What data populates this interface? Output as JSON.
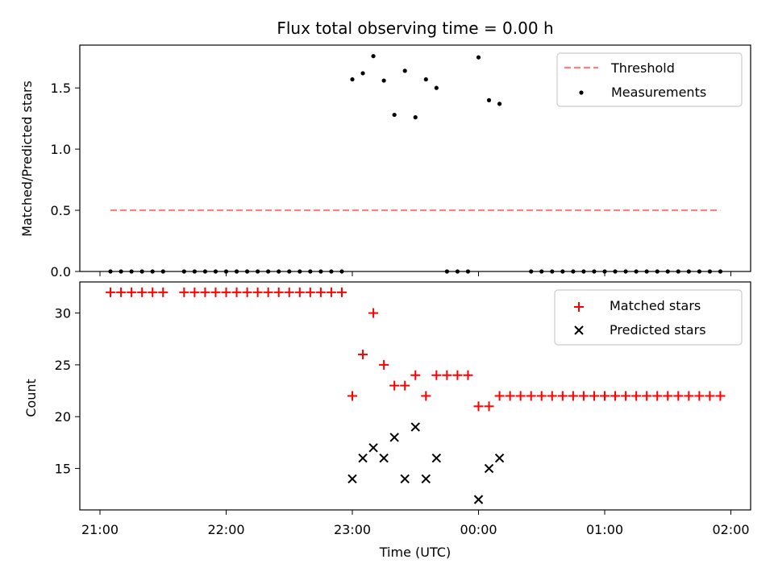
{
  "chart_data": [
    {
      "type": "scatter",
      "title": "Flux total observing time = 0.00 h",
      "xlabel": "",
      "ylabel": "Matched/Predicted stars",
      "ylim": [
        0,
        1.85
      ],
      "yticks": [
        "0.0",
        "0.5",
        "1.0",
        "1.5"
      ],
      "ytick_values": [
        0,
        0.5,
        1.0,
        1.5
      ],
      "legend": {
        "position": "upper-right",
        "entries": [
          "Threshold",
          "Measurements"
        ]
      },
      "threshold": {
        "name": "Threshold",
        "value": 0.5,
        "x_range": [
          "21:05",
          "01:55"
        ],
        "color": "#ff7f7f",
        "style": "dashed"
      },
      "series": [
        {
          "name": "Measurements",
          "color": "#000000",
          "x": [
            "21:05",
            "21:10",
            "21:15",
            "21:20",
            "21:25",
            "21:30",
            "21:35",
            "21:40",
            "21:45",
            "21:50",
            "21:55",
            "22:00",
            "22:05",
            "22:10",
            "22:15",
            "22:20",
            "22:25",
            "22:30",
            "22:35",
            "22:40",
            "22:45",
            "22:50",
            "22:55",
            "23:00",
            "23:05",
            "23:10",
            "23:15",
            "23:20",
            "23:25",
            "23:30",
            "23:35",
            "23:40",
            "23:45",
            "23:50",
            "23:55",
            "00:00",
            "00:05",
            "00:10",
            "00:15",
            "00:20",
            "00:25",
            "00:30",
            "00:35",
            "00:40",
            "00:45",
            "00:50",
            "00:55",
            "01:00",
            "01:05",
            "01:10",
            "01:15",
            "01:20",
            "01:25",
            "01:30",
            "01:35",
            "01:40",
            "01:45",
            "01:50",
            "01:55"
          ],
          "y": [
            0,
            0,
            0,
            0,
            0,
            0,
            0,
            0,
            0,
            0,
            0,
            0,
            0,
            0,
            0,
            0,
            0,
            0,
            0,
            0,
            0,
            0,
            0,
            1.57,
            1.62,
            1.76,
            1.56,
            1.28,
            1.64,
            1.26,
            1.57,
            1.5,
            0,
            0,
            0,
            1.75,
            1.4,
            1.37,
            0,
            0,
            0,
            0,
            0,
            0,
            0,
            0,
            0,
            0,
            0,
            0,
            0,
            0,
            0,
            0,
            0,
            0,
            0,
            0,
            0
          ],
          "present": [
            1,
            1,
            1,
            1,
            1,
            1,
            0,
            1,
            1,
            1,
            1,
            1,
            1,
            1,
            1,
            1,
            1,
            1,
            1,
            1,
            1,
            1,
            1,
            1,
            1,
            1,
            1,
            1,
            1,
            1,
            1,
            1,
            1,
            1,
            1,
            1,
            1,
            1,
            0,
            0,
            1,
            1,
            1,
            1,
            1,
            1,
            1,
            1,
            1,
            1,
            1,
            1,
            1,
            1,
            1,
            1,
            1,
            1,
            1
          ]
        }
      ]
    },
    {
      "type": "scatter",
      "title": "",
      "xlabel": "Time (UTC)",
      "ylabel": "Count",
      "ylim": [
        11,
        33
      ],
      "yticks": [
        "15",
        "20",
        "25",
        "30"
      ],
      "ytick_values": [
        15,
        20,
        25,
        30
      ],
      "xticks": [
        "21:00",
        "22:00",
        "23:00",
        "00:00",
        "01:00",
        "02:00"
      ],
      "xtick_values": [
        "21:00",
        "22:00",
        "23:00",
        "00:00",
        "01:00",
        "02:00"
      ],
      "legend": {
        "position": "upper-right",
        "entries": [
          "Matched stars",
          "Predicted stars"
        ]
      },
      "series": [
        {
          "name": "Matched stars",
          "marker": "plus",
          "color": "#ff0000",
          "x": [
            "21:05",
            "21:10",
            "21:15",
            "21:20",
            "21:25",
            "21:30",
            "21:35",
            "21:40",
            "21:45",
            "21:50",
            "21:55",
            "22:00",
            "22:05",
            "22:10",
            "22:15",
            "22:20",
            "22:25",
            "22:30",
            "22:35",
            "22:40",
            "22:45",
            "22:50",
            "22:55",
            "23:00",
            "23:05",
            "23:10",
            "23:15",
            "23:20",
            "23:25",
            "23:30",
            "23:35",
            "23:40",
            "23:45",
            "23:50",
            "23:55",
            "00:00",
            "00:05",
            "00:10",
            "00:15",
            "00:20",
            "00:25",
            "00:30",
            "00:35",
            "00:40",
            "00:45",
            "00:50",
            "00:55",
            "01:00",
            "01:05",
            "01:10",
            "01:15",
            "01:20",
            "01:25",
            "01:30",
            "01:35",
            "01:40",
            "01:45",
            "01:50",
            "01:55"
          ],
          "y": [
            32,
            32,
            32,
            32,
            32,
            32,
            32,
            32,
            32,
            32,
            32,
            32,
            32,
            32,
            32,
            32,
            32,
            32,
            32,
            32,
            32,
            32,
            32,
            22,
            26,
            30,
            25,
            23,
            23,
            24,
            22,
            24,
            24,
            24,
            24,
            21,
            21,
            22,
            22,
            22,
            22,
            22,
            22,
            22,
            22,
            22,
            22,
            22,
            22,
            22,
            22,
            22,
            22,
            22,
            22,
            22,
            22,
            22,
            22
          ],
          "present": [
            1,
            1,
            1,
            1,
            1,
            1,
            0,
            1,
            1,
            1,
            1,
            1,
            1,
            1,
            1,
            1,
            1,
            1,
            1,
            1,
            1,
            1,
            1,
            1,
            1,
            1,
            1,
            1,
            1,
            1,
            1,
            1,
            1,
            1,
            1,
            1,
            1,
            1,
            1,
            1,
            1,
            1,
            1,
            1,
            1,
            1,
            1,
            1,
            1,
            1,
            1,
            1,
            1,
            1,
            1,
            1,
            1,
            1,
            1
          ]
        },
        {
          "name": "Predicted stars",
          "marker": "x",
          "color": "#000000",
          "x": [
            "23:00",
            "23:05",
            "23:10",
            "23:15",
            "23:20",
            "23:25",
            "23:30",
            "23:35",
            "23:40",
            "00:00",
            "00:05",
            "00:10"
          ],
          "y": [
            14,
            16,
            17,
            16,
            18,
            14,
            19,
            14,
            16,
            12,
            15,
            16
          ]
        }
      ]
    }
  ]
}
